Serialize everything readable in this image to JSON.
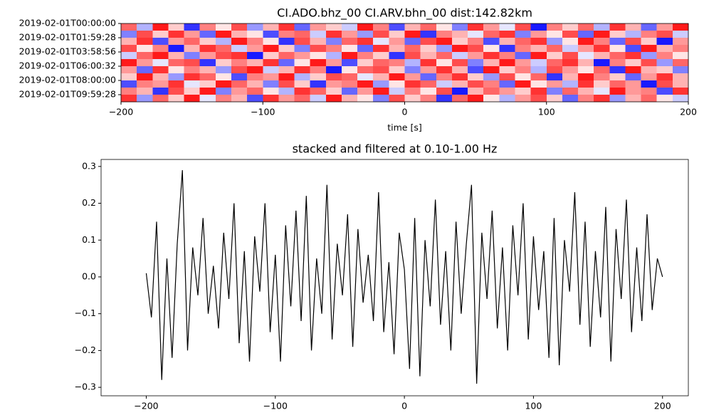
{
  "chart_data": [
    {
      "type": "heatmap",
      "title": "CI.ADO.bhz_00 CI.ARV.bhn_00  dist:142.82km",
      "xlabel": "time [s]",
      "xlim": [
        -200,
        200
      ],
      "xticks": [
        {
          "value": -200,
          "label": "−200"
        },
        {
          "value": -100,
          "label": "−100"
        },
        0,
        100,
        200
      ],
      "ylim": [
        0,
        11
      ],
      "yticks": [
        {
          "value": 0,
          "label": "2019-02-01T00:00:00"
        },
        {
          "value": 2,
          "label": "2019-02-01T01:59:28"
        },
        {
          "value": 4,
          "label": "2019-02-01T03:58:56"
        },
        {
          "value": 6,
          "label": "2019-02-01T06:00:32"
        },
        {
          "value": 8,
          "label": "2019-02-01T08:00:00"
        },
        {
          "value": 10,
          "label": "2019-02-01T09:59:28"
        }
      ],
      "clim": [
        -1,
        1
      ],
      "colormap": [
        "#0000ff",
        "#ffffff",
        "#ff0000"
      ],
      "values": [
        [
          0.6,
          -0.3,
          0.9,
          0.2,
          -0.8,
          0.5,
          0.1,
          0.7,
          -0.4,
          0.3,
          0.8,
          -0.6,
          0.4,
          0.2,
          -0.2,
          0.9,
          0.5,
          -0.7,
          0.3,
          0.6,
          0.1,
          -0.5,
          0.8,
          0.4,
          -0.1,
          0.7,
          -0.9,
          0.5,
          0.2,
          0.6,
          -0.3,
          0.8,
          0.3,
          -0.6,
          0.4,
          0.9
        ],
        [
          -0.5,
          0.7,
          0.2,
          0.8,
          0.4,
          -0.6,
          0.9,
          0.3,
          0.1,
          -0.7,
          0.5,
          0.6,
          -0.2,
          0.8,
          0.4,
          -0.4,
          0.7,
          0.2,
          0.9,
          -0.8,
          0.5,
          0.3,
          -0.1,
          0.6,
          0.8,
          -0.5,
          0.4,
          0.1,
          0.7,
          -0.6,
          0.9,
          0.2,
          -0.3,
          0.5,
          0.7,
          -0.2
        ],
        [
          0.3,
          0.8,
          -0.7,
          0.4,
          0.6,
          0.2,
          -0.3,
          0.9,
          0.5,
          0.1,
          -0.8,
          0.7,
          0.3,
          -0.5,
          0.6,
          0.8,
          -0.1,
          0.4,
          -0.6,
          0.7,
          0.9,
          0.2,
          0.5,
          -0.7,
          0.3,
          0.6,
          0.8,
          -0.4,
          0.1,
          0.9,
          0.5,
          -0.6,
          0.7,
          0.2,
          -0.9,
          0.4
        ],
        [
          0.7,
          0.1,
          0.5,
          -0.9,
          0.3,
          0.8,
          0.6,
          -0.2,
          0.4,
          0.9,
          0.2,
          -0.5,
          0.7,
          0.5,
          0.1,
          -0.6,
          0.8,
          0.3,
          0.6,
          0.2,
          -0.4,
          0.9,
          0.7,
          0.1,
          -0.8,
          0.5,
          0.3,
          0.6,
          -0.2,
          0.4,
          0.8,
          0.1,
          -0.7,
          0.9,
          0.3,
          0.5
        ],
        [
          -0.2,
          0.6,
          0.9,
          0.3,
          -0.5,
          0.4,
          0.7,
          0.8,
          -0.9,
          0.2,
          0.6,
          0.4,
          0.1,
          -0.3,
          0.9,
          0.5,
          0.2,
          -0.8,
          0.7,
          0.3,
          0.6,
          -0.2,
          0.4,
          0.8,
          0.5,
          -0.6,
          0.9,
          0.2,
          0.7,
          -0.1,
          0.3,
          0.6,
          0.8,
          -0.4,
          0.5,
          0.1
        ],
        [
          0.9,
          0.4,
          -0.1,
          0.6,
          0.7,
          -0.8,
          0.2,
          0.5,
          0.3,
          0.8,
          -0.6,
          0.1,
          0.9,
          0.4,
          -0.7,
          0.2,
          0.6,
          0.5,
          -0.3,
          0.8,
          0.1,
          0.7,
          -0.5,
          0.3,
          0.9,
          0.4,
          -0.2,
          0.6,
          0.8,
          0.3,
          -0.9,
          0.5,
          0.2,
          0.7,
          -0.4,
          0.6
        ],
        [
          0.4,
          -0.6,
          0.8,
          0.1,
          0.5,
          0.3,
          -0.4,
          0.7,
          0.9,
          -0.2,
          0.3,
          0.8,
          0.5,
          -0.9,
          0.1,
          0.6,
          0.7,
          0.2,
          -0.5,
          0.4,
          0.8,
          0.3,
          -0.7,
          0.9,
          0.2,
          0.5,
          -0.3,
          0.7,
          0.4,
          0.1,
          0.6,
          -0.8,
          0.9,
          0.3,
          0.2,
          -0.5
        ],
        [
          0.2,
          0.9,
          0.3,
          -0.4,
          0.8,
          0.6,
          0.1,
          -0.7,
          0.5,
          0.4,
          0.9,
          -0.3,
          0.2,
          0.7,
          0.6,
          -0.1,
          0.3,
          0.9,
          0.4,
          -0.6,
          0.5,
          0.8,
          0.2,
          -0.4,
          0.7,
          0.1,
          0.6,
          -0.8,
          0.3,
          0.9,
          0.5,
          0.2,
          -0.6,
          0.4,
          0.8,
          0.3
        ],
        [
          -0.7,
          0.5,
          0.4,
          0.8,
          -0.1,
          0.2,
          0.9,
          0.6,
          0.3,
          -0.5,
          0.7,
          0.2,
          -0.8,
          0.4,
          0.5,
          0.9,
          -0.4,
          0.1,
          0.8,
          0.6,
          -0.2,
          0.3,
          0.7,
          0.5,
          -0.6,
          0.9,
          0.1,
          0.4,
          -0.3,
          0.8,
          0.2,
          0.6,
          0.4,
          -0.9,
          0.7,
          0.3
        ],
        [
          0.5,
          0.3,
          -0.8,
          0.7,
          0.2,
          0.9,
          -0.5,
          0.4,
          0.6,
          0.1,
          -0.3,
          0.8,
          0.6,
          0.2,
          -0.6,
          0.4,
          0.9,
          -0.2,
          0.5,
          0.1,
          0.7,
          -0.9,
          0.3,
          0.6,
          0.4,
          0.2,
          0.8,
          -0.5,
          0.6,
          0.3,
          -0.1,
          0.9,
          0.4,
          0.5,
          -0.7,
          0.8
        ],
        [
          0.8,
          -0.4,
          0.6,
          0.2,
          0.9,
          -0.1,
          0.5,
          0.3,
          -0.7,
          0.8,
          0.4,
          0.6,
          -0.2,
          0.9,
          0.3,
          0.1,
          -0.5,
          0.7,
          0.2,
          0.5,
          -0.8,
          0.6,
          0.9,
          0.1,
          -0.3,
          0.4,
          0.7,
          0.2,
          -0.6,
          0.5,
          0.8,
          -0.4,
          0.3,
          0.6,
          0.1,
          -0.2
        ]
      ]
    },
    {
      "type": "line",
      "title": "stacked and filtered at 0.10-1.00 Hz",
      "color": "#000000",
      "xlim": [
        -235,
        220
      ],
      "xticks": [
        {
          "value": -200,
          "label": "−200"
        },
        {
          "value": -100,
          "label": "−100"
        },
        0,
        100,
        200
      ],
      "ylim": [
        -0.323,
        0.319
      ],
      "yticks": [
        {
          "value": -0.3,
          "label": "−0.3"
        },
        {
          "value": -0.2,
          "label": "−0.2"
        },
        {
          "value": -0.1,
          "label": "−0.1"
        },
        {
          "value": 0,
          "label": "0.0"
        },
        0.1,
        0.2,
        0.3
      ],
      "x": [
        -200,
        -196,
        -192,
        -188,
        -184,
        -180,
        -176,
        -172,
        -168,
        -164,
        -160,
        -156,
        -152,
        -148,
        -144,
        -140,
        -136,
        -132,
        -128,
        -124,
        -120,
        -116,
        -112,
        -108,
        -104,
        -100,
        -96,
        -92,
        -88,
        -84,
        -80,
        -76,
        -72,
        -68,
        -64,
        -60,
        -56,
        -52,
        -48,
        -44,
        -40,
        -36,
        -32,
        -28,
        -24,
        -20,
        -16,
        -12,
        -8,
        -4,
        0,
        4,
        8,
        12,
        16,
        20,
        24,
        28,
        32,
        36,
        40,
        44,
        48,
        52,
        56,
        60,
        64,
        68,
        72,
        76,
        80,
        84,
        88,
        92,
        96,
        100,
        104,
        108,
        112,
        116,
        120,
        124,
        128,
        132,
        136,
        140,
        144,
        148,
        152,
        156,
        160,
        164,
        168,
        172,
        176,
        180,
        184,
        188,
        192,
        196,
        200
      ],
      "values": [
        0.01,
        -0.11,
        0.15,
        -0.28,
        0.05,
        -0.22,
        0.09,
        0.29,
        -0.2,
        0.08,
        -0.05,
        0.16,
        -0.1,
        0.03,
        -0.14,
        0.12,
        -0.06,
        0.2,
        -0.18,
        0.07,
        -0.23,
        0.11,
        -0.04,
        0.2,
        -0.15,
        0.06,
        -0.23,
        0.14,
        -0.08,
        0.18,
        -0.12,
        0.22,
        -0.2,
        0.05,
        -0.1,
        0.25,
        -0.17,
        0.09,
        -0.05,
        0.17,
        -0.19,
        0.13,
        -0.07,
        0.06,
        -0.12,
        0.23,
        -0.15,
        0.04,
        -0.21,
        0.12,
        0.02,
        -0.25,
        0.16,
        -0.27,
        0.1,
        -0.08,
        0.21,
        -0.13,
        0.07,
        -0.2,
        0.15,
        -0.1,
        0.09,
        0.25,
        -0.29,
        0.12,
        -0.06,
        0.18,
        -0.14,
        0.08,
        -0.2,
        0.14,
        -0.05,
        0.2,
        -0.17,
        0.11,
        -0.09,
        0.07,
        -0.22,
        0.16,
        -0.24,
        0.1,
        -0.04,
        0.23,
        -0.13,
        0.15,
        -0.19,
        0.07,
        -0.11,
        0.19,
        -0.23,
        0.13,
        -0.06,
        0.21,
        -0.15,
        0.08,
        -0.12,
        0.17,
        -0.09,
        0.05,
        0.0
      ]
    }
  ]
}
